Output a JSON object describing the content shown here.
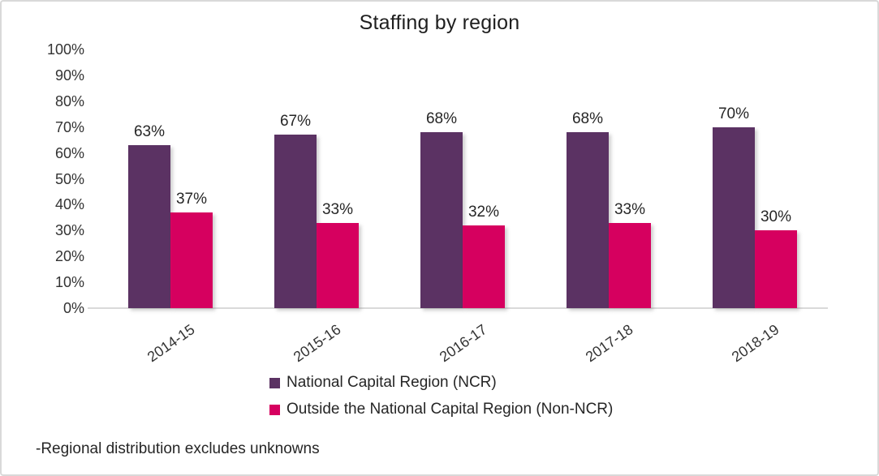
{
  "title": "Staffing by region",
  "footnote": "-Regional distribution excludes unknowns",
  "colors": {
    "ncr": "#5b3263",
    "non_ncr": "#d6005f",
    "axis_line": "#d9d9d9",
    "text": "#262626"
  },
  "chart_data": {
    "type": "bar",
    "title": "Staffing by region",
    "categories": [
      "2014-15",
      "2015-16",
      "2016-17",
      "2017-18",
      "2018-19"
    ],
    "series": [
      {
        "name": "National Capital Region (NCR)",
        "color": "#5b3263",
        "values": [
          63,
          67,
          68,
          68,
          70
        ]
      },
      {
        "name": "Outside the National Capital Region (Non-NCR)",
        "color": "#d6005f",
        "values": [
          37,
          33,
          32,
          33,
          30
        ]
      }
    ],
    "data_labels": [
      "63%",
      "37%",
      "67%",
      "33%",
      "68%",
      "32%",
      "68%",
      "33%",
      "70%",
      "30%"
    ],
    "value_suffix": "%",
    "ylim": [
      0,
      100
    ],
    "yticks": [
      "0%",
      "10%",
      "20%",
      "30%",
      "40%",
      "50%",
      "60%",
      "70%",
      "80%",
      "90%",
      "100%"
    ],
    "grid": false,
    "legend_position": "bottom",
    "annotation": "-Regional distribution excludes unknowns"
  }
}
